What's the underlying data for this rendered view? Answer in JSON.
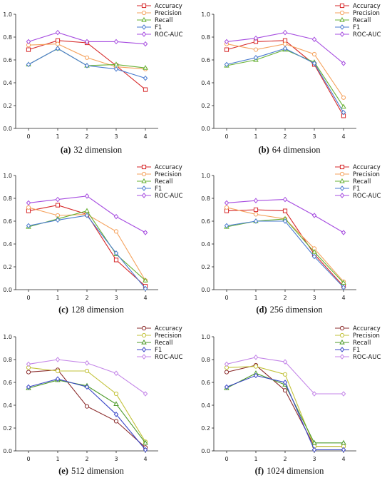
{
  "chart_data": [
    {
      "type": "line",
      "caption_label": "(a)",
      "caption_text": "32 dimension",
      "x": [
        0,
        1,
        2,
        3,
        4
      ],
      "ylim": [
        0,
        1.0
      ],
      "yticks": [
        "0.0",
        "0.2",
        "0.4",
        "0.6",
        "0.8",
        "1.0"
      ],
      "series": [
        {
          "name": "Accuracy",
          "color": "#d62728",
          "marker": "square",
          "values": [
            0.69,
            0.77,
            0.75,
            0.55,
            0.34
          ]
        },
        {
          "name": "Precision",
          "color": "#f5a25d",
          "marker": "circle",
          "values": [
            0.73,
            0.74,
            0.62,
            0.54,
            0.52
          ]
        },
        {
          "name": "Recall",
          "color": "#66b032",
          "marker": "triangle",
          "values": [
            0.56,
            0.7,
            0.55,
            0.56,
            0.53
          ]
        },
        {
          "name": "F1",
          "color": "#4a7bd0",
          "marker": "diamond",
          "values": [
            0.56,
            0.7,
            0.55,
            0.52,
            0.44
          ]
        },
        {
          "name": "ROC-AUC",
          "color": "#a64ce0",
          "marker": "diamond",
          "values": [
            0.76,
            0.84,
            0.76,
            0.76,
            0.74
          ]
        }
      ]
    },
    {
      "type": "line",
      "caption_label": "(b)",
      "caption_text": "64 dimension",
      "x": [
        0,
        1,
        2,
        3,
        4
      ],
      "ylim": [
        0,
        1.0
      ],
      "yticks": [
        "0.0",
        "0.2",
        "0.4",
        "0.6",
        "0.8",
        "1.0"
      ],
      "series": [
        {
          "name": "Accuracy",
          "color": "#d62728",
          "marker": "square",
          "values": [
            0.69,
            0.76,
            0.77,
            0.56,
            0.11
          ]
        },
        {
          "name": "Precision",
          "color": "#f5a25d",
          "marker": "circle",
          "values": [
            0.74,
            0.69,
            0.74,
            0.65,
            0.27
          ]
        },
        {
          "name": "Recall",
          "color": "#66b032",
          "marker": "triangle",
          "values": [
            0.55,
            0.6,
            0.69,
            0.58,
            0.19
          ]
        },
        {
          "name": "F1",
          "color": "#4a7bd0",
          "marker": "diamond",
          "values": [
            0.56,
            0.62,
            0.7,
            0.57,
            0.14
          ]
        },
        {
          "name": "ROC-AUC",
          "color": "#a64ce0",
          "marker": "diamond",
          "values": [
            0.76,
            0.79,
            0.84,
            0.78,
            0.57
          ]
        }
      ]
    },
    {
      "type": "line",
      "caption_label": "(c)",
      "caption_text": "128 dimension",
      "x": [
        0,
        1,
        2,
        3,
        4
      ],
      "ylim": [
        0,
        1.0
      ],
      "yticks": [
        "0.0",
        "0.2",
        "0.4",
        "0.6",
        "0.8",
        "1.0"
      ],
      "series": [
        {
          "name": "Accuracy",
          "color": "#d62728",
          "marker": "square",
          "values": [
            0.69,
            0.74,
            0.66,
            0.26,
            0.03
          ]
        },
        {
          "name": "Precision",
          "color": "#f5a25d",
          "marker": "circle",
          "values": [
            0.72,
            0.65,
            0.66,
            0.51,
            0.08
          ]
        },
        {
          "name": "Recall",
          "color": "#66b032",
          "marker": "triangle",
          "values": [
            0.55,
            0.62,
            0.69,
            0.31,
            0.08
          ]
        },
        {
          "name": "F1",
          "color": "#4a7bd0",
          "marker": "diamond",
          "values": [
            0.56,
            0.61,
            0.65,
            0.32,
            0.01
          ]
        },
        {
          "name": "ROC-AUC",
          "color": "#a64ce0",
          "marker": "diamond",
          "values": [
            0.76,
            0.79,
            0.82,
            0.64,
            0.5
          ]
        }
      ]
    },
    {
      "type": "line",
      "caption_label": "(d)",
      "caption_text": "256 dimension",
      "x": [
        0,
        1,
        2,
        3,
        4
      ],
      "ylim": [
        0,
        1.0
      ],
      "yticks": [
        "0.0",
        "0.2",
        "0.4",
        "0.6",
        "0.8",
        "1.0"
      ],
      "series": [
        {
          "name": "Accuracy",
          "color": "#d62728",
          "marker": "square",
          "values": [
            0.69,
            0.7,
            0.69,
            0.31,
            0.03
          ]
        },
        {
          "name": "Precision",
          "color": "#f5a25d",
          "marker": "circle",
          "values": [
            0.72,
            0.66,
            0.62,
            0.36,
            0.07
          ]
        },
        {
          "name": "Recall",
          "color": "#66b032",
          "marker": "triangle",
          "values": [
            0.55,
            0.6,
            0.62,
            0.33,
            0.06
          ]
        },
        {
          "name": "F1",
          "color": "#4a7bd0",
          "marker": "diamond",
          "values": [
            0.56,
            0.6,
            0.6,
            0.29,
            0.02
          ]
        },
        {
          "name": "ROC-AUC",
          "color": "#a64ce0",
          "marker": "diamond",
          "values": [
            0.76,
            0.78,
            0.79,
            0.65,
            0.5
          ]
        }
      ]
    },
    {
      "type": "line",
      "caption_label": "(e)",
      "caption_text": "512 dimension",
      "x": [
        0,
        1,
        2,
        3,
        4
      ],
      "ylim": [
        0,
        1.0
      ],
      "yticks": [
        "0.0",
        "0.2",
        "0.4",
        "0.6",
        "0.8",
        "1.0"
      ],
      "series": [
        {
          "name": "Accuracy",
          "color": "#8b2c2c",
          "marker": "circle",
          "values": [
            0.69,
            0.71,
            0.39,
            0.26,
            0.03
          ]
        },
        {
          "name": "Precision",
          "color": "#c2c23a",
          "marker": "circle",
          "values": [
            0.73,
            0.7,
            0.7,
            0.5,
            0.08
          ]
        },
        {
          "name": "Recall",
          "color": "#4c9a2a",
          "marker": "triangle",
          "values": [
            0.55,
            0.62,
            0.57,
            0.41,
            0.07
          ]
        },
        {
          "name": "F1",
          "color": "#3a46c8",
          "marker": "diamond",
          "values": [
            0.56,
            0.63,
            0.56,
            0.32,
            0.01
          ]
        },
        {
          "name": "ROC-AUC",
          "color": "#c486e8",
          "marker": "diamond",
          "values": [
            0.76,
            0.8,
            0.77,
            0.68,
            0.5
          ]
        }
      ]
    },
    {
      "type": "line",
      "caption_label": "(f)",
      "caption_text": "1024 dimension",
      "x": [
        0,
        1,
        2,
        3,
        4
      ],
      "ylim": [
        0,
        1.0
      ],
      "yticks": [
        "0.0",
        "0.2",
        "0.4",
        "0.6",
        "0.8",
        "1.0"
      ],
      "series": [
        {
          "name": "Accuracy",
          "color": "#8b2c2c",
          "marker": "circle",
          "values": [
            0.69,
            0.75,
            0.53,
            0.04,
            0.04
          ]
        },
        {
          "name": "Precision",
          "color": "#c2c23a",
          "marker": "circle",
          "values": [
            0.73,
            0.74,
            0.67,
            0.04,
            0.04
          ]
        },
        {
          "name": "Recall",
          "color": "#4c9a2a",
          "marker": "triangle",
          "values": [
            0.55,
            0.68,
            0.58,
            0.07,
            0.07
          ]
        },
        {
          "name": "F1",
          "color": "#3a46c8",
          "marker": "diamond",
          "values": [
            0.56,
            0.66,
            0.6,
            0.01,
            0.01
          ]
        },
        {
          "name": "ROC-AUC",
          "color": "#c486e8",
          "marker": "diamond",
          "values": [
            0.76,
            0.82,
            0.78,
            0.5,
            0.5
          ]
        }
      ]
    }
  ]
}
